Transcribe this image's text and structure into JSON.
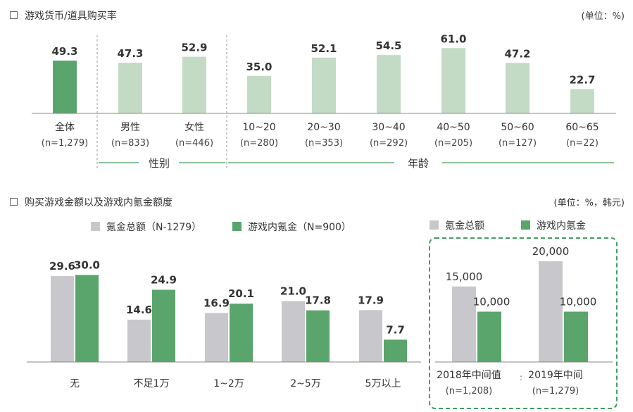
{
  "colors": {
    "accent_green": "#5aa56c",
    "light_green": "#c3dbc4",
    "gray": "#c8c8cc",
    "line_green": "#8cc39a",
    "dashed_green": "#3f9e5c"
  },
  "section1": {
    "title": "游戏货币/道具购买率",
    "unit": "(单位：%)",
    "group_labels": {
      "gender": "性别",
      "age": "年龄"
    }
  },
  "section2": {
    "title": "购买游戏金额以及游戏内氪金额度",
    "unit": "(单位：%，韩元)"
  },
  "chart_data": [
    {
      "type": "bar",
      "title": "游戏货币/道具购买率",
      "unit": "%",
      "ylim": [
        0,
        70
      ],
      "categories": [
        "全体",
        "男性",
        "女性",
        "10~20",
        "20~30",
        "30~40",
        "40~50",
        "50~60",
        "60~65"
      ],
      "sublabels": [
        "(n=1,279)",
        "(n=833)",
        "(n=446)",
        "(n=280)",
        "(n=353)",
        "(n=292)",
        "(n=205)",
        "(n=127)",
        "(n=22)"
      ],
      "values": [
        49.3,
        47.3,
        52.9,
        35.0,
        52.1,
        54.5,
        61.0,
        47.2,
        22.7
      ],
      "value_labels": [
        "49.3",
        "47.3",
        "52.9",
        "35.0",
        "52.1",
        "54.5",
        "61.0",
        "47.2",
        "22.7"
      ],
      "groups": [
        {
          "label": "性别",
          "categories": [
            "男性",
            "女性"
          ]
        },
        {
          "label": "年龄",
          "categories": [
            "10~20",
            "20~30",
            "30~40",
            "40~50",
            "50~60",
            "60~65"
          ]
        }
      ]
    },
    {
      "type": "bar",
      "title": "购买游戏金额以及游戏内氪金额度",
      "unit": "%",
      "ylim": [
        0,
        35
      ],
      "categories": [
        "无",
        "不足1万",
        "1~2万",
        "2~5万",
        "5万以上"
      ],
      "series": [
        {
          "name": "氪金总额（N-1279）",
          "values": [
            29.6,
            14.6,
            16.9,
            21.0,
            17.9
          ],
          "value_labels": [
            "29.6",
            "14.6",
            "16.9",
            "21.0",
            "17.9"
          ]
        },
        {
          "name": "游戏内氪金（N=900）",
          "values": [
            30.0,
            24.9,
            20.1,
            17.8,
            7.7
          ],
          "value_labels": [
            "30.0",
            "24.9",
            "20.1",
            "17.8",
            "7.7"
          ]
        }
      ],
      "legend": "top"
    },
    {
      "type": "bar",
      "unit": "韩元",
      "ylim": [
        0,
        25000
      ],
      "categories": [
        "2018年中间值",
        "2019年中间"
      ],
      "sublabels": [
        "(n=1,208)",
        "(n=1,279)"
      ],
      "series": [
        {
          "name": "氪金总额",
          "values": [
            15000,
            20000
          ],
          "value_labels": [
            "15,000",
            "20,000"
          ]
        },
        {
          "name": "游戏内氪金",
          "values": [
            10000,
            10000
          ],
          "value_labels": [
            "10,000",
            "10,000"
          ]
        }
      ],
      "legend": "top"
    }
  ]
}
